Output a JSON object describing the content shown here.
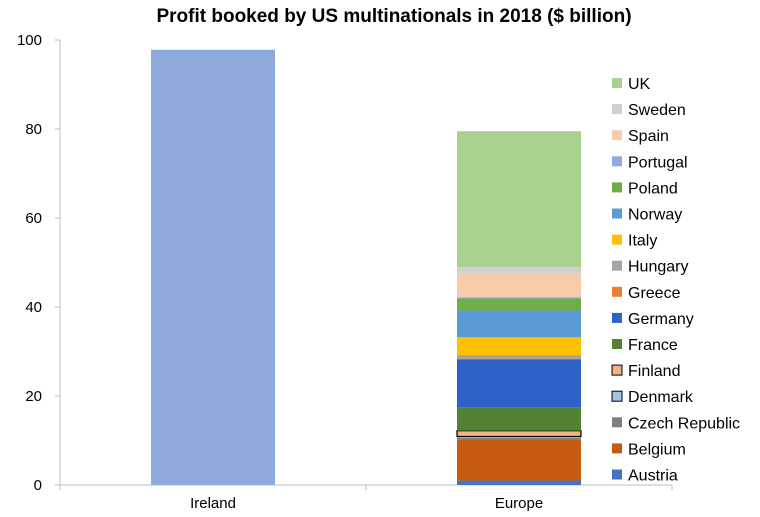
{
  "chart_data": {
    "type": "bar",
    "stacked": true,
    "title": "Profit booked by US multinationals in 2018 ($ billion)",
    "xlabel": "",
    "ylabel": "",
    "categories": [
      "Ireland",
      "Europe"
    ],
    "ylim": [
      0,
      100
    ],
    "yticks": [
      0,
      20,
      40,
      60,
      80,
      100
    ],
    "grid": false,
    "legend_placement": "right",
    "ireland": {
      "value": 97.8,
      "color": "#8eaadb"
    },
    "series": [
      {
        "name": "Austria",
        "values": [
          null,
          1.0
        ],
        "color": "#4472c4"
      },
      {
        "name": "Belgium",
        "values": [
          null,
          9.3
        ],
        "color": "#c55a11"
      },
      {
        "name": "Czech Republic",
        "values": [
          null,
          0.3
        ],
        "color": "#7f7f7f"
      },
      {
        "name": "Denmark",
        "values": [
          null,
          0.3
        ],
        "color": "#9dc3e6"
      },
      {
        "name": "Finland",
        "values": [
          null,
          1.3
        ],
        "color": "#f4b183"
      },
      {
        "name": "France",
        "values": [
          null,
          5.3
        ],
        "color": "#548235"
      },
      {
        "name": "Germany",
        "values": [
          null,
          10.7
        ],
        "color": "#2e62c6"
      },
      {
        "name": "Greece",
        "values": [
          null,
          0.2
        ],
        "color": "#ed7d31"
      },
      {
        "name": "Hungary",
        "values": [
          null,
          0.8
        ],
        "color": "#a5a5a5"
      },
      {
        "name": "Italy",
        "values": [
          null,
          4.0
        ],
        "color": "#ffc000"
      },
      {
        "name": "Norway",
        "values": [
          null,
          6.0
        ],
        "color": "#5b9bd5"
      },
      {
        "name": "Poland",
        "values": [
          null,
          2.7
        ],
        "color": "#70ad47"
      },
      {
        "name": "Portugal",
        "values": [
          null,
          0.3
        ],
        "color": "#8faadc"
      },
      {
        "name": "Spain",
        "values": [
          null,
          5.3
        ],
        "color": "#f8cbad"
      },
      {
        "name": "Sweden",
        "values": [
          null,
          1.5
        ],
        "color": "#d0d0d0"
      },
      {
        "name": "UK",
        "values": [
          null,
          30.5
        ],
        "color": "#a9d18e"
      }
    ]
  }
}
